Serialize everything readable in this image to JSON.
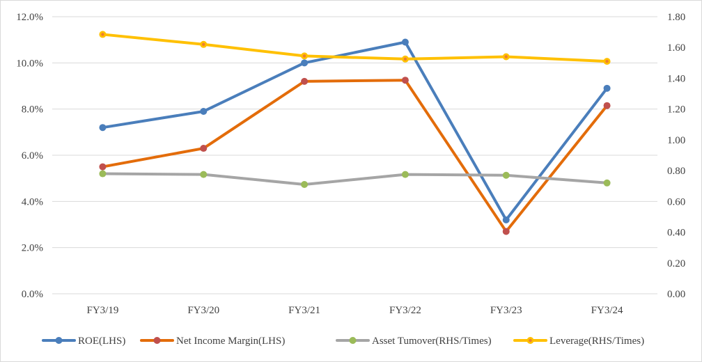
{
  "chart_data": {
    "type": "line",
    "title": "",
    "categories": [
      "FY3/19",
      "FY3/20",
      "FY3/21",
      "FY3/22",
      "FY3/23",
      "FY3/24"
    ],
    "y_left": {
      "ylim": [
        0,
        12
      ],
      "ticks": [
        "0.0%",
        "2.0%",
        "4.0%",
        "6.0%",
        "8.0%",
        "10.0%",
        "12.0%"
      ],
      "unit": "%"
    },
    "y_right": {
      "ylim": [
        0,
        1.8
      ],
      "ticks": [
        "0.00",
        "0.20",
        "0.40",
        "0.60",
        "0.80",
        "1.00",
        "1.20",
        "1.40",
        "1.60",
        "1.80"
      ]
    },
    "grid": "horizontal",
    "legend_position": "bottom",
    "series": [
      {
        "name": "ROE(LHS)",
        "axis": "left",
        "color": "#4a7ebb",
        "marker": "#4a7ebb",
        "values": [
          7.2,
          7.9,
          10.0,
          10.9,
          3.2,
          8.9
        ]
      },
      {
        "name": "Net Income Margin(LHS)",
        "axis": "left",
        "color": "#e36c0a",
        "marker": "#c0504d",
        "values": [
          5.5,
          6.3,
          9.2,
          9.25,
          2.7,
          8.15
        ]
      },
      {
        "name": "Asset Tumover(RHS/Times)",
        "axis": "right",
        "color": "#a5a5a5",
        "marker": "#9bbb59",
        "values": [
          0.78,
          0.775,
          0.71,
          0.775,
          0.77,
          0.72
        ]
      },
      {
        "name": "Leverage(RHS/Times)",
        "axis": "right",
        "color": "#ffc000",
        "marker": "#ffc000",
        "markerInner": "#ed7d31",
        "values": [
          1.685,
          1.62,
          1.545,
          1.525,
          1.54,
          1.51
        ]
      }
    ]
  }
}
